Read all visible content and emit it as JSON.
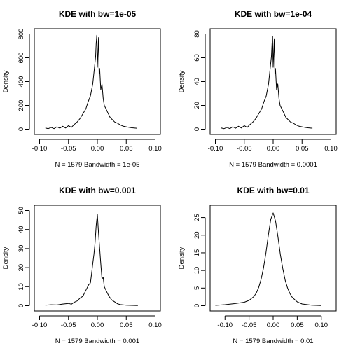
{
  "chart_data": [
    {
      "type": "line",
      "title": "KDE with bw=1e-05",
      "xlabel": "N = 1579   Bandwidth = 1e-05",
      "ylabel": "Density",
      "xlim": [
        -0.1,
        0.1
      ],
      "ylim": [
        0,
        800
      ],
      "xticks": [
        -0.1,
        -0.05,
        0.0,
        0.05,
        0.1
      ],
      "xtick_labels": [
        "-0.10",
        "-0.05",
        "0.00",
        "0.05",
        "0.10"
      ],
      "yticks": [
        0,
        200,
        400,
        600,
        800
      ],
      "ytick_labels": [
        "0",
        "200",
        "400",
        "600",
        "800"
      ],
      "x": [
        -0.09,
        -0.085,
        -0.08,
        -0.075,
        -0.07,
        -0.065,
        -0.06,
        -0.055,
        -0.05,
        -0.045,
        -0.04,
        -0.035,
        -0.03,
        -0.025,
        -0.02,
        -0.016,
        -0.012,
        -0.008,
        -0.005,
        -0.003,
        -0.002,
        -0.001,
        0.0,
        0.001,
        0.002,
        0.003,
        0.004,
        0.006,
        0.008,
        0.01,
        0.012,
        0.015,
        0.018,
        0.022,
        0.026,
        0.03,
        0.035,
        0.04,
        0.045,
        0.05,
        0.055,
        0.06,
        0.068
      ],
      "y": [
        10,
        5,
        15,
        5,
        20,
        8,
        25,
        10,
        30,
        15,
        40,
        60,
        90,
        130,
        170,
        230,
        280,
        380,
        520,
        610,
        720,
        790,
        520,
        640,
        770,
        460,
        510,
        330,
        380,
        260,
        200,
        170,
        140,
        100,
        80,
        60,
        50,
        35,
        25,
        20,
        15,
        12,
        8
      ]
    },
    {
      "type": "line",
      "title": "KDE with bw=1e-04",
      "xlabel": "N = 1579   Bandwidth = 0.0001",
      "ylabel": "Density",
      "xlim": [
        -0.1,
        0.1
      ],
      "ylim": [
        0,
        80
      ],
      "xticks": [
        -0.1,
        -0.05,
        0.0,
        0.05,
        0.1
      ],
      "xtick_labels": [
        "-0.10",
        "-0.05",
        "0.00",
        "0.05",
        "0.10"
      ],
      "yticks": [
        0,
        20,
        40,
        60,
        80
      ],
      "ytick_labels": [
        "0",
        "20",
        "40",
        "60",
        "80"
      ],
      "x": [
        -0.09,
        -0.085,
        -0.08,
        -0.075,
        -0.07,
        -0.065,
        -0.06,
        -0.055,
        -0.05,
        -0.045,
        -0.04,
        -0.035,
        -0.03,
        -0.025,
        -0.02,
        -0.016,
        -0.012,
        -0.008,
        -0.005,
        -0.003,
        -0.002,
        -0.001,
        0.0,
        0.001,
        0.002,
        0.003,
        0.004,
        0.006,
        0.008,
        0.01,
        0.012,
        0.015,
        0.018,
        0.022,
        0.026,
        0.03,
        0.035,
        0.04,
        0.045,
        0.05,
        0.055,
        0.06,
        0.068
      ],
      "y": [
        1,
        0.5,
        1.5,
        0.5,
        2,
        0.8,
        2.5,
        1,
        3,
        1.5,
        4,
        6,
        9,
        13,
        17,
        23,
        28,
        38,
        52,
        61,
        72,
        78,
        52,
        64,
        76,
        46,
        51,
        33,
        38,
        26,
        20,
        17,
        14,
        10,
        8,
        6,
        5,
        3.5,
        2.5,
        2,
        1.5,
        1.2,
        0.8
      ]
    },
    {
      "type": "line",
      "title": "KDE with bw=0.001",
      "xlabel": "N = 1579   Bandwidth = 0.001",
      "ylabel": "Density",
      "xlim": [
        -0.1,
        0.1
      ],
      "ylim": [
        0,
        50
      ],
      "xticks": [
        -0.1,
        -0.05,
        0.0,
        0.05,
        0.1
      ],
      "xtick_labels": [
        "-0.10",
        "-0.05",
        "0.00",
        "0.05",
        "0.10"
      ],
      "yticks": [
        0,
        10,
        20,
        30,
        40,
        50
      ],
      "ytick_labels": [
        "0",
        "10",
        "20",
        "30",
        "40",
        "50"
      ],
      "x": [
        -0.09,
        -0.08,
        -0.07,
        -0.06,
        -0.05,
        -0.045,
        -0.04,
        -0.035,
        -0.03,
        -0.025,
        -0.02,
        -0.015,
        -0.012,
        -0.01,
        -0.008,
        -0.006,
        -0.004,
        -0.002,
        0.0,
        0.002,
        0.004,
        0.006,
        0.008,
        0.01,
        0.012,
        0.015,
        0.02,
        0.025,
        0.03,
        0.035,
        0.04,
        0.05,
        0.06,
        0.07
      ],
      "y": [
        0.3,
        0.5,
        0.4,
        0.9,
        1.2,
        0.8,
        1.8,
        2.5,
        4,
        5,
        8,
        11,
        12,
        17,
        22,
        27,
        33,
        42,
        48,
        38,
        30,
        22,
        14,
        15,
        10,
        8,
        5,
        3,
        2,
        1,
        0.6,
        0.3,
        0.2,
        0.1
      ]
    },
    {
      "type": "line",
      "title": "KDE with bw=0.01",
      "xlabel": "N = 1579   Bandwidth = 0.01",
      "ylabel": "Density",
      "xlim": [
        -0.12,
        0.12
      ],
      "ylim": [
        0,
        27
      ],
      "xticks": [
        -0.1,
        -0.05,
        0.0,
        0.05,
        0.1
      ],
      "xtick_labels": [
        "-0.10",
        "-0.05",
        "0.00",
        "0.05",
        "0.10"
      ],
      "yticks": [
        0,
        5,
        10,
        15,
        20,
        25
      ],
      "ytick_labels": [
        "0",
        "5",
        "10",
        "15",
        "20",
        "25"
      ],
      "x": [
        -0.12,
        -0.1,
        -0.08,
        -0.06,
        -0.05,
        -0.04,
        -0.035,
        -0.03,
        -0.025,
        -0.02,
        -0.015,
        -0.01,
        -0.005,
        0.0,
        0.005,
        0.01,
        0.015,
        0.02,
        0.025,
        0.03,
        0.035,
        0.04,
        0.05,
        0.06,
        0.08,
        0.1
      ],
      "y": [
        0.1,
        0.3,
        0.6,
        1.0,
        1.5,
        2.6,
        3.6,
        5.2,
        7.5,
        10.8,
        15.0,
        20.0,
        24.5,
        26.3,
        24.0,
        19.5,
        14.5,
        10.5,
        7.2,
        5.0,
        3.4,
        2.3,
        1.1,
        0.5,
        0.15,
        0.05
      ]
    }
  ]
}
